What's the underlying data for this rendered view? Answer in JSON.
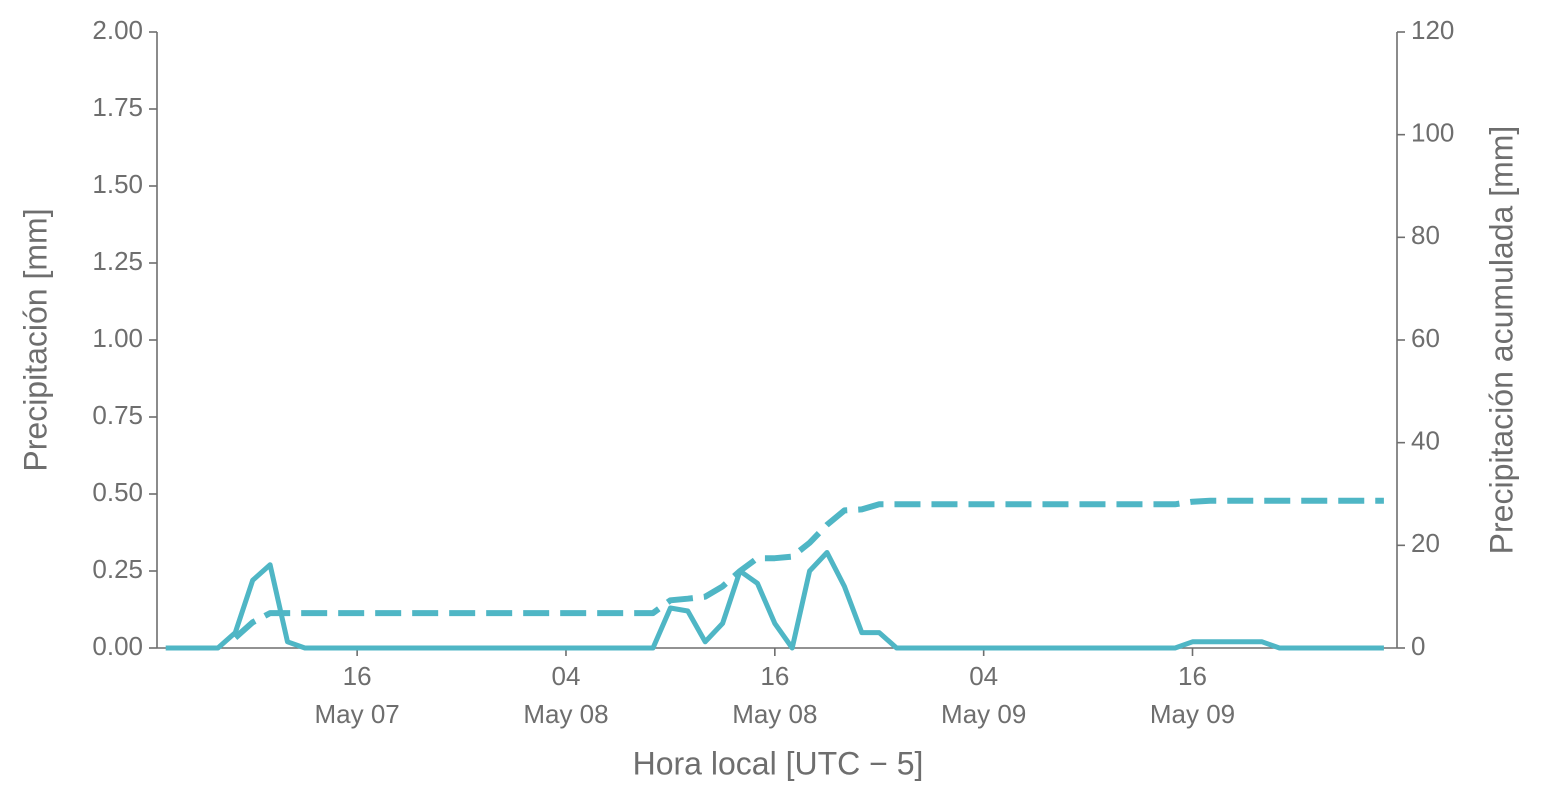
{
  "chart_data": {
    "type": "line",
    "xlabel": "Hora local [UTC − 5]",
    "ylabel": "Precipitación [mm]",
    "y2label": "Precipitación acumulada [mm]",
    "x": [
      "May 07 05:00",
      "May 07 06:00",
      "May 07 07:00",
      "May 07 08:00",
      "May 07 09:00",
      "May 07 10:00",
      "May 07 11:00",
      "May 07 12:00",
      "May 07 13:00",
      "May 07 14:00",
      "May 07 15:00",
      "May 07 16:00",
      "May 07 17:00",
      "May 07 18:00",
      "May 07 19:00",
      "May 07 20:00",
      "May 07 21:00",
      "May 07 22:00",
      "May 07 23:00",
      "May 08 00:00",
      "May 08 01:00",
      "May 08 02:00",
      "May 08 03:00",
      "May 08 04:00",
      "May 08 05:00",
      "May 08 06:00",
      "May 08 07:00",
      "May 08 08:00",
      "May 08 09:00",
      "May 08 10:00",
      "May 08 11:00",
      "May 08 12:00",
      "May 08 13:00",
      "May 08 14:00",
      "May 08 15:00",
      "May 08 16:00",
      "May 08 17:00",
      "May 08 18:00",
      "May 08 19:00",
      "May 08 20:00",
      "May 08 21:00",
      "May 08 22:00",
      "May 08 23:00",
      "May 09 00:00",
      "May 09 01:00",
      "May 09 02:00",
      "May 09 03:00",
      "May 09 04:00",
      "May 09 05:00",
      "May 09 06:00",
      "May 09 07:00",
      "May 09 08:00",
      "May 09 09:00",
      "May 09 10:00",
      "May 09 11:00",
      "May 09 12:00",
      "May 09 13:00",
      "May 09 14:00",
      "May 09 15:00",
      "May 09 16:00",
      "May 09 17:00",
      "May 09 18:00",
      "May 09 19:00",
      "May 09 20:00",
      "May 09 21:00",
      "May 09 22:00",
      "May 09 23:00",
      "May 10 00:00",
      "May 10 01:00",
      "May 10 02:00",
      "May 10 03:00"
    ],
    "series": [
      {
        "color": "#4fb6c5",
        "style": "solid",
        "values": [
          0,
          0,
          0,
          0,
          0.05,
          0.22,
          0.27,
          0.02,
          0,
          0,
          0,
          0,
          0,
          0,
          0,
          0,
          0,
          0,
          0,
          0,
          0,
          0,
          0,
          0,
          0,
          0,
          0,
          0,
          0,
          0.13,
          0.12,
          0.02,
          0.08,
          0.25,
          0.21,
          0.08,
          0,
          0.25,
          0.31,
          0.2,
          0.05,
          0.05,
          0,
          0,
          0,
          0,
          0,
          0,
          0,
          0,
          0,
          0,
          0,
          0,
          0,
          0,
          0,
          0,
          0,
          0.02,
          0.02,
          0.02,
          0.02,
          0.02,
          0,
          0,
          0,
          0,
          0,
          0,
          0
        ]
      },
      {
        "color": "#4fb6c5",
        "style": "dashed",
        "axis": "y2",
        "values": [
          null,
          null,
          null,
          null,
          2,
          5,
          6.8,
          6.8,
          6.8,
          6.8,
          6.8,
          6.8,
          6.8,
          6.8,
          6.8,
          6.8,
          6.8,
          6.8,
          6.8,
          6.8,
          6.8,
          6.8,
          6.8,
          6.8,
          6.8,
          6.8,
          6.8,
          6.8,
          6.8,
          9.3,
          9.6,
          10,
          12,
          15,
          17.5,
          17.5,
          17.8,
          20.5,
          24,
          26.8,
          27,
          28,
          28,
          28,
          28,
          28,
          28,
          28,
          28,
          28,
          28,
          28,
          28,
          28,
          28,
          28,
          28,
          28,
          28,
          28.5,
          28.7,
          28.7,
          28.7,
          28.7,
          28.7,
          28.7,
          28.7,
          28.7,
          28.7,
          28.7,
          28.7
        ]
      }
    ],
    "xlim": [
      "May 07 04:30",
      "May 10 03:45"
    ],
    "xticks": [
      {
        "value": "May 07 16:00",
        "label": [
          "16",
          "May 07"
        ]
      },
      {
        "value": "May 08 04:00",
        "label": [
          "04",
          "May 08"
        ]
      },
      {
        "value": "May 08 16:00",
        "label": [
          "16",
          "May 08"
        ]
      },
      {
        "value": "May 09 04:00",
        "label": [
          "04",
          "May 09"
        ]
      },
      {
        "value": "May 09 16:00",
        "label": [
          "16",
          "May 09"
        ]
      }
    ],
    "ylim": [
      0,
      2
    ],
    "yticks": [
      {
        "value": 0,
        "label": "0.00"
      },
      {
        "value": 0.25,
        "label": "0.25"
      },
      {
        "value": 0.5,
        "label": "0.50"
      },
      {
        "value": 0.75,
        "label": "0.75"
      },
      {
        "value": 1,
        "label": "1.00"
      },
      {
        "value": 1.25,
        "label": "1.25"
      },
      {
        "value": 1.5,
        "label": "1.50"
      },
      {
        "value": 1.75,
        "label": "1.75"
      },
      {
        "value": 2,
        "label": "2.00"
      }
    ],
    "y2lim": [
      0,
      120
    ],
    "y2ticks": [
      0,
      20,
      40,
      60,
      80,
      100,
      120
    ]
  }
}
